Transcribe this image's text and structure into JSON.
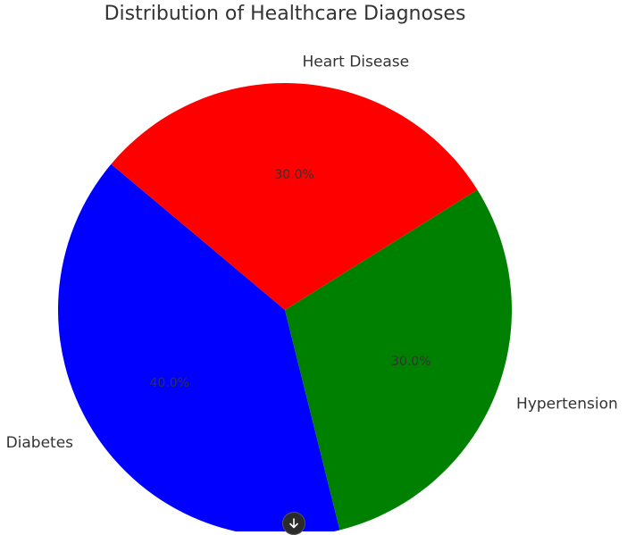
{
  "chart_data": {
    "type": "pie",
    "title": "Distribution of Healthcare Diagnoses",
    "categories": [
      "Diabetes",
      "Hypertension",
      "Heart Disease"
    ],
    "values": [
      40,
      30,
      30
    ],
    "percent_labels": [
      "40.0%",
      "30.0%",
      "30.0%"
    ],
    "colors": [
      "#0000ff",
      "#008000",
      "#ff0000"
    ],
    "start_angle_deg": 140,
    "direction": "counterclockwise",
    "legend": "none"
  },
  "controls": {
    "scroll_down_icon": "arrow-down-icon"
  }
}
